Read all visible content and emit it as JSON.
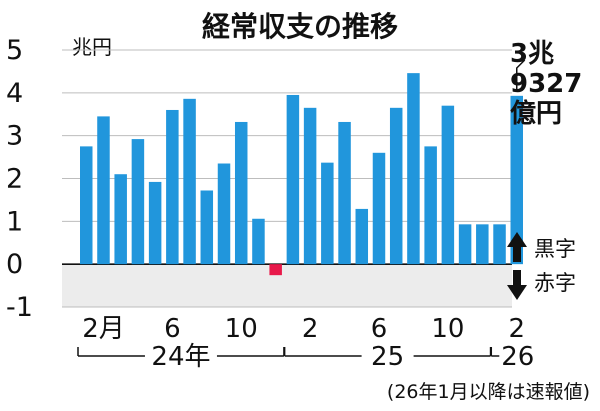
{
  "chart_data": {
    "type": "bar",
    "title": "経常収支の推移",
    "unit": "兆円",
    "ylim": [
      -1,
      5
    ],
    "yticks": [
      "-1",
      "0",
      "1",
      "2",
      "3",
      "4",
      "5"
    ],
    "x_tick_labels": [
      {
        "index": 1,
        "label": "2月"
      },
      {
        "index": 5,
        "label": "6"
      },
      {
        "index": 9,
        "label": "10"
      },
      {
        "index": 13,
        "label": "2"
      },
      {
        "index": 17,
        "label": "6"
      },
      {
        "index": 21,
        "label": "10"
      },
      {
        "index": 25,
        "label": "2"
      }
    ],
    "year_groups": [
      {
        "label": "24年",
        "start": 0,
        "end": 11
      },
      {
        "label": "25",
        "start": 12,
        "end": 23
      },
      {
        "label": "26",
        "start": 24,
        "end": 25
      }
    ],
    "categories": [
      "24-1",
      "24-2",
      "24-3",
      "24-4",
      "24-5",
      "24-6",
      "24-7",
      "24-8",
      "24-9",
      "24-10",
      "24-11",
      "24-12",
      "25-1",
      "25-2",
      "25-3",
      "25-4",
      "25-5",
      "25-6",
      "25-7",
      "25-8",
      "25-9",
      "25-10",
      "25-11",
      "25-12",
      "26-1",
      "26-2"
    ],
    "values": [
      2.75,
      3.45,
      2.1,
      2.92,
      1.92,
      3.6,
      3.86,
      1.72,
      2.35,
      3.32,
      1.06,
      -0.15,
      3.95,
      3.65,
      2.37,
      3.32,
      1.29,
      2.6,
      3.65,
      4.46,
      2.75,
      3.7,
      0.93,
      0.93,
      0.93,
      3.93
    ],
    "colors": {
      "positive": "#2196dc",
      "negative": "#e8194a",
      "deficit_area": "#ececec"
    },
    "callout": {
      "index": 25,
      "lines": [
        "3兆",
        "9327",
        "億円"
      ]
    },
    "legend": {
      "surplus": "黒字",
      "deficit": "赤字"
    },
    "note": "(26年1月以降は速報値)"
  }
}
